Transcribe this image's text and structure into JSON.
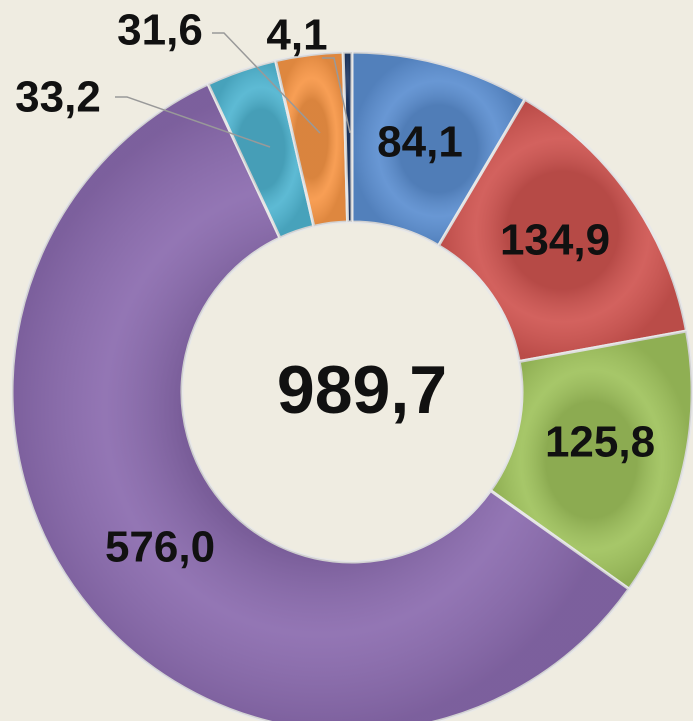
{
  "chart_data": {
    "type": "donut",
    "values": [
      84.1,
      134.9,
      125.8,
      576.0,
      33.2,
      31.6,
      4.1
    ],
    "value_labels": [
      "84,1",
      "134,9",
      "125,8",
      "576,0",
      "33,2",
      "31,6",
      "4,1"
    ],
    "colors": [
      "#5b8ed0",
      "#cf5450",
      "#9fc25c",
      "#8a6aae",
      "#4fb4d0",
      "#f79646",
      "#1f3864"
    ],
    "center_text": "989,7"
  }
}
